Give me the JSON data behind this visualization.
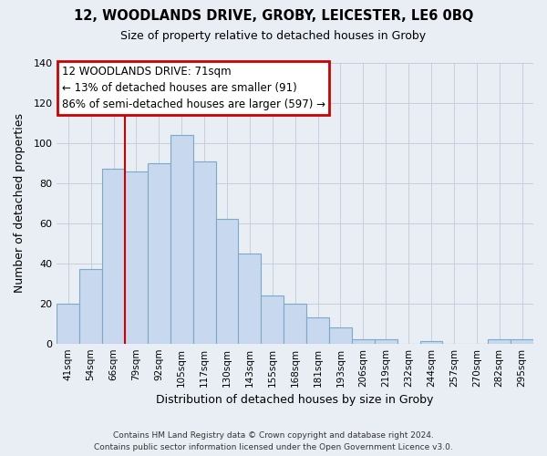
{
  "title": "12, WOODLANDS DRIVE, GROBY, LEICESTER, LE6 0BQ",
  "subtitle": "Size of property relative to detached houses in Groby",
  "xlabel": "Distribution of detached houses by size in Groby",
  "ylabel": "Number of detached properties",
  "bar_color": "#c8d8ee",
  "bar_edge_color": "#7aaac8",
  "categories": [
    "41sqm",
    "54sqm",
    "66sqm",
    "79sqm",
    "92sqm",
    "105sqm",
    "117sqm",
    "130sqm",
    "143sqm",
    "155sqm",
    "168sqm",
    "181sqm",
    "193sqm",
    "206sqm",
    "219sqm",
    "232sqm",
    "244sqm",
    "257sqm",
    "270sqm",
    "282sqm",
    "295sqm"
  ],
  "values": [
    20,
    37,
    87,
    86,
    90,
    104,
    91,
    62,
    45,
    24,
    20,
    13,
    8,
    2,
    2,
    0,
    1,
    0,
    0,
    2,
    2
  ],
  "ylim": [
    0,
    140
  ],
  "yticks": [
    0,
    20,
    40,
    60,
    80,
    100,
    120,
    140
  ],
  "property_line_label": "12 WOODLANDS DRIVE: 71sqm",
  "annotation_line1": "← 13% of detached houses are smaller (91)",
  "annotation_line2": "86% of semi-detached houses are larger (597) →",
  "annotation_box_color": "#ffffff",
  "annotation_box_edge": "#cc0000",
  "line_color": "#cc0000",
  "footer1": "Contains HM Land Registry data © Crown copyright and database right 2024.",
  "footer2": "Contains public sector information licensed under the Open Government Licence v3.0.",
  "background_color": "#e8eef4",
  "plot_bg_color": "#e8eef4",
  "grid_color": "#c5d0dc"
}
